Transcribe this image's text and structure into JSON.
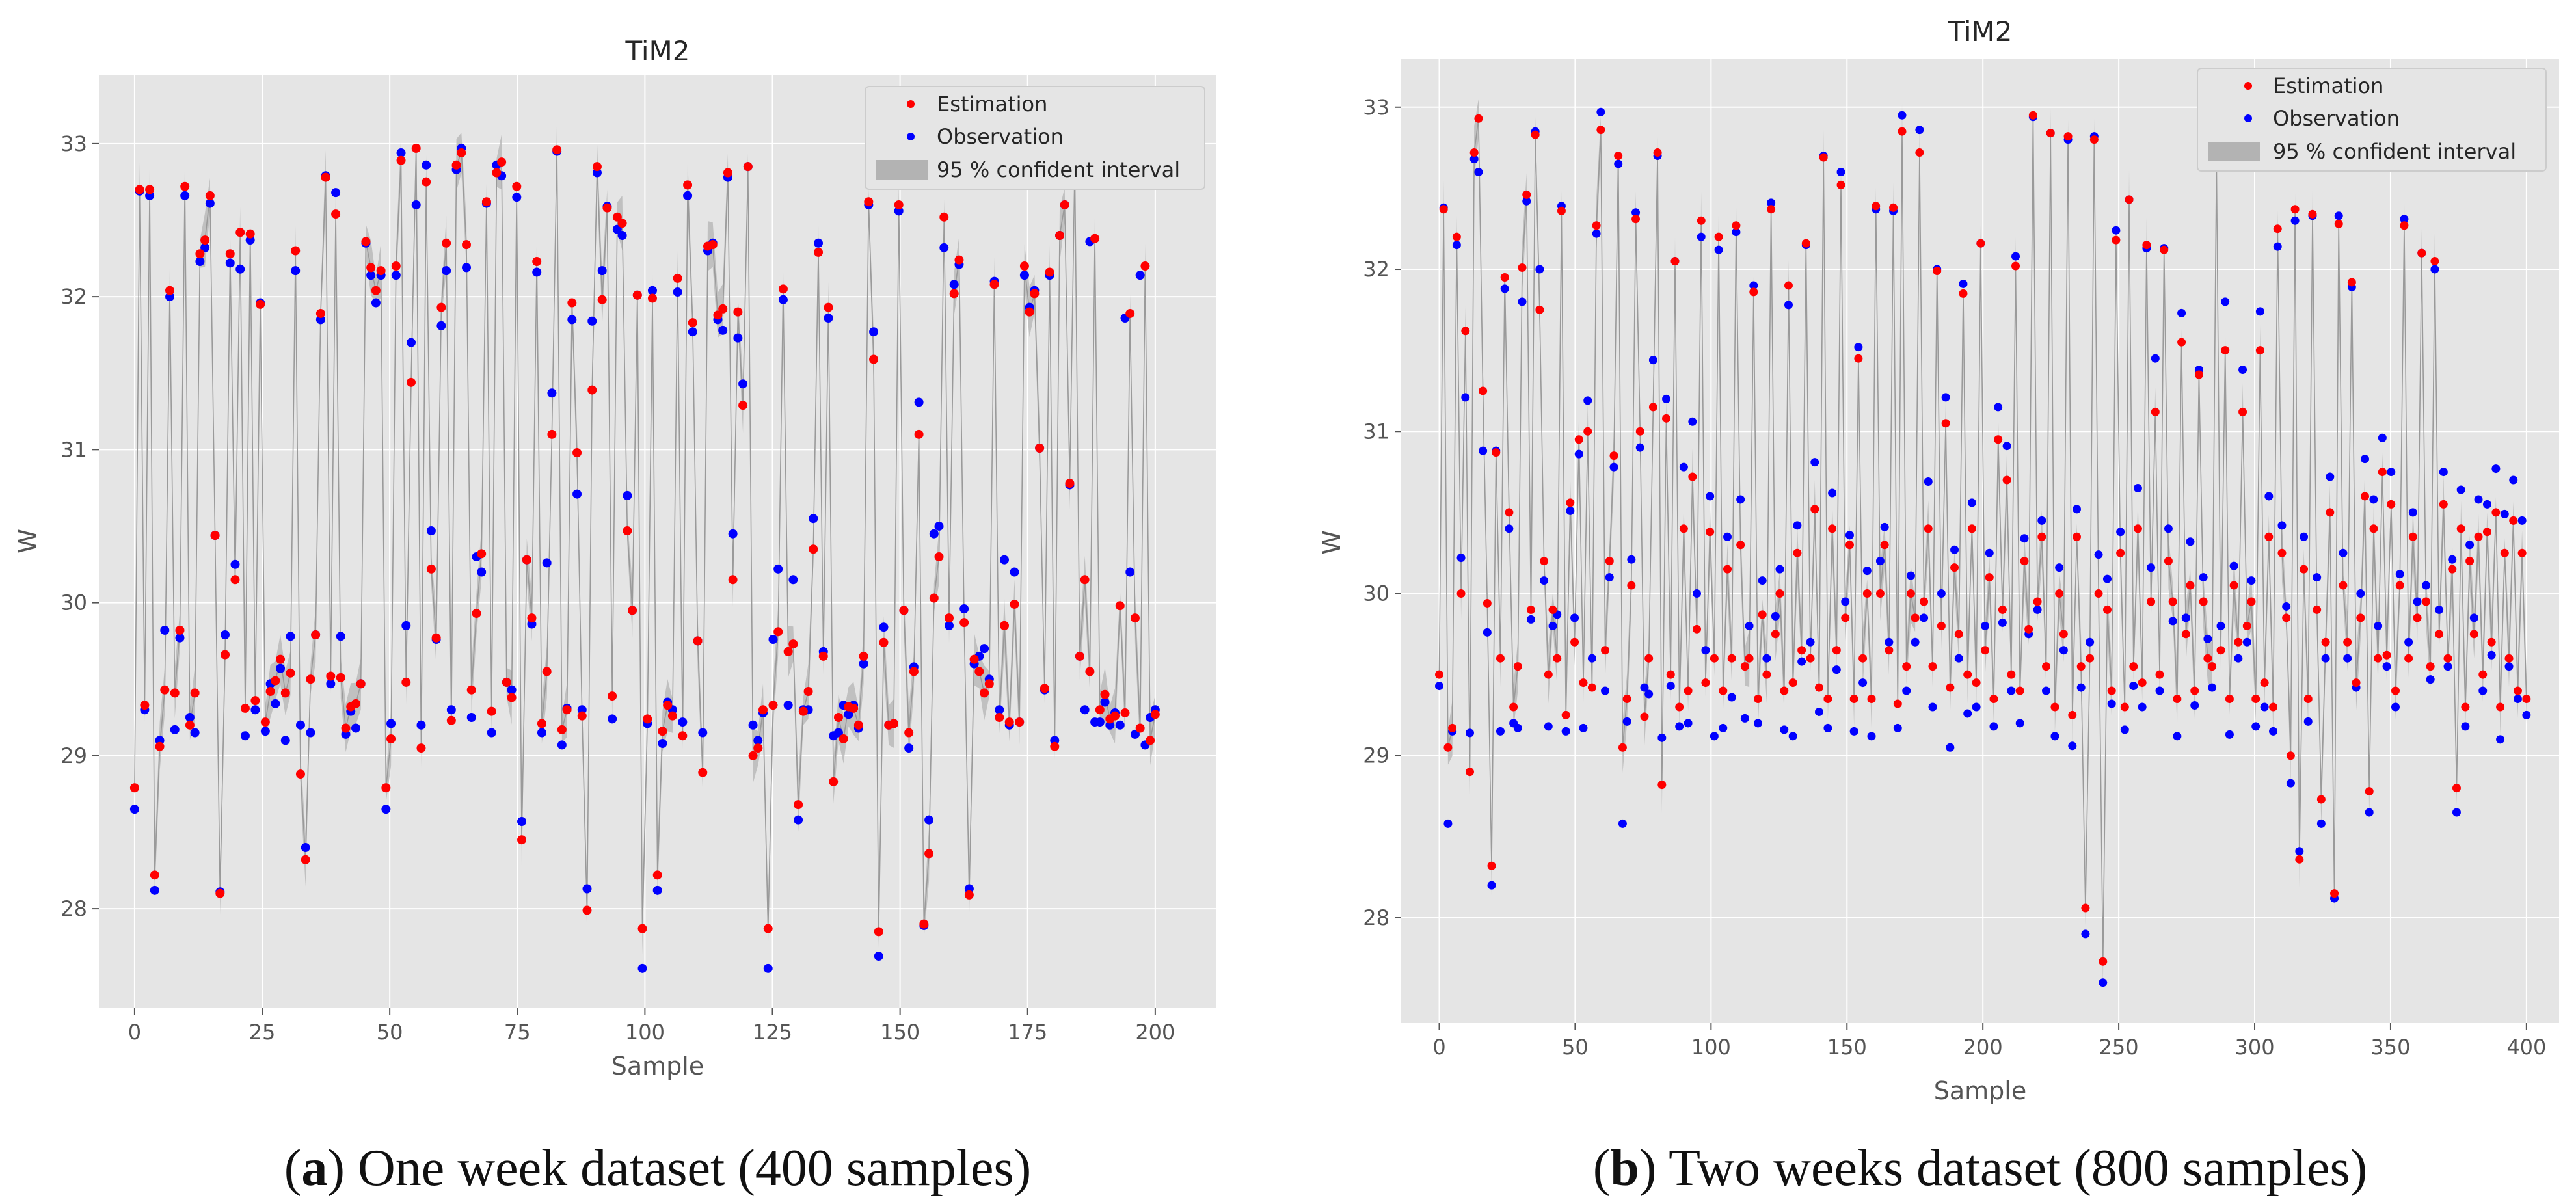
{
  "colors": {
    "estimation": "#ff0000",
    "observation": "#0000ff",
    "interval": "#b3b3b3",
    "line": "#9a9a9a",
    "plot_background": "#e5e5e5",
    "grid": "#ffffff"
  },
  "chart_data": [
    {
      "type": "scatter",
      "title": "TiM2",
      "xlabel": "Sample",
      "ylabel": "W",
      "xlim": [
        -7,
        212
      ],
      "ylim": [
        27.35,
        33.45
      ],
      "xticks": [
        0,
        25,
        50,
        75,
        100,
        125,
        150,
        175,
        200
      ],
      "xtick_labels": [
        "0",
        "25",
        "50",
        "75",
        "100",
        "125",
        "150",
        "175",
        "200"
      ],
      "yticks": [
        28,
        29,
        30,
        31,
        32,
        33
      ],
      "ytick_labels": [
        "28",
        "29",
        "30",
        "31",
        "32",
        "33"
      ],
      "grid": true,
      "legend_position": "top-right",
      "legend": [
        "Estimation",
        "Observation",
        "95 % confident interval"
      ],
      "x_start": 0,
      "series": [
        {
          "name": "Observation",
          "values": [
            28.65,
            32.69,
            29.3,
            32.66,
            28.12,
            29.1,
            29.82,
            32.0,
            29.17,
            29.77,
            32.66,
            29.25,
            29.15,
            32.23,
            32.32,
            32.61,
            30.44,
            28.11,
            29.79,
            32.22,
            30.25,
            32.18,
            29.13,
            32.37,
            29.3,
            31.96,
            29.16,
            29.47,
            29.34,
            29.57,
            29.1,
            29.78,
            32.17,
            29.2,
            28.4,
            29.15,
            29.79,
            31.85,
            32.79,
            29.47,
            32.68,
            29.78,
            29.14,
            29.29,
            29.18,
            29.47,
            32.35,
            32.14,
            31.96,
            32.14,
            28.65,
            29.21,
            32.14,
            32.94,
            29.85,
            31.7,
            32.6,
            29.2,
            32.86,
            30.47,
            29.76,
            31.81,
            32.17,
            29.3,
            32.83,
            32.97,
            32.19,
            29.25,
            30.3,
            30.2,
            32.61,
            29.15,
            32.86,
            32.79,
            29.48,
            29.43,
            32.65,
            28.57,
            30.28,
            29.86,
            32.16,
            29.15,
            30.26,
            31.37,
            32.95,
            29.07,
            29.31,
            31.85,
            30.71,
            29.3,
            28.13,
            31.84,
            32.81,
            32.17,
            32.59,
            29.24,
            32.44,
            32.4,
            30.7,
            29.95,
            32.01,
            27.61,
            29.21,
            32.04,
            28.12,
            29.08,
            29.35,
            29.3,
            32.03,
            29.22,
            32.66,
            31.77,
            29.75,
            29.15,
            32.3,
            32.35,
            31.85,
            31.78,
            32.78,
            30.45,
            31.73,
            31.43,
            32.85,
            29.2,
            29.1,
            29.28,
            27.61,
            29.76,
            30.22,
            31.98,
            29.33,
            30.15,
            28.58,
            29.3,
            29.3,
            30.55,
            32.35,
            29.68,
            31.86,
            29.13,
            29.15,
            29.33,
            29.27,
            29.33,
            29.18,
            29.6,
            32.6,
            31.77,
            27.69,
            29.84,
            29.2,
            29.21,
            32.56,
            29.95,
            29.05,
            29.58,
            31.31,
            27.89,
            28.58,
            30.45,
            30.5,
            32.32,
            29.85,
            32.08,
            32.21,
            29.96,
            28.13,
            29.6,
            29.65,
            29.7,
            29.5,
            32.1,
            29.3,
            30.28,
            29.2,
            30.2,
            29.22,
            32.14,
            31.93,
            32.04,
            31.01,
            29.43,
            32.14,
            29.1,
            32.4,
            32.6,
            30.77,
            32.88,
            29.65,
            29.3,
            32.36,
            29.22,
            29.22,
            29.35,
            29.2,
            29.28,
            29.2,
            31.86,
            30.2,
            29.14,
            32.14,
            29.07,
            29.25,
            29.3
          ]
        },
        {
          "name": "Estimation",
          "values": [
            28.79,
            32.7,
            29.33,
            32.7,
            28.22,
            29.06,
            29.43,
            32.04,
            29.41,
            29.82,
            32.72,
            29.2,
            29.41,
            32.28,
            32.37,
            32.66,
            30.44,
            28.1,
            29.66,
            32.28,
            30.15,
            32.42,
            29.31,
            32.41,
            29.36,
            31.95,
            29.22,
            29.42,
            29.49,
            29.63,
            29.41,
            29.54,
            32.3,
            28.88,
            28.32,
            29.5,
            29.79,
            31.89,
            32.78,
            29.52,
            32.54,
            29.51,
            29.18,
            29.32,
            29.34,
            29.47,
            32.36,
            32.19,
            32.04,
            32.17,
            28.79,
            29.11,
            32.2,
            32.89,
            29.48,
            31.44,
            32.97,
            29.05,
            32.75,
            30.22,
            29.77,
            31.93,
            32.35,
            29.23,
            32.86,
            32.94,
            32.34,
            29.43,
            29.93,
            30.32,
            32.62,
            29.29,
            32.81,
            32.88,
            29.48,
            29.38,
            32.72,
            28.45,
            30.28,
            29.9,
            32.23,
            29.21,
            29.55,
            31.1,
            32.96,
            29.17,
            29.3,
            31.96,
            30.98,
            29.26,
            27.99,
            31.39,
            32.85,
            31.98,
            32.58,
            29.39,
            32.52,
            32.48,
            30.47,
            29.95,
            32.01,
            27.87,
            29.24,
            31.99,
            28.22,
            29.16,
            29.33,
            29.26,
            32.12,
            29.13,
            32.73,
            31.83,
            29.75,
            28.89,
            32.33,
            32.34,
            31.88,
            31.92,
            32.81,
            30.15,
            31.9,
            31.29,
            32.85,
            29.0,
            29.05,
            29.3,
            27.87,
            29.33,
            29.81,
            32.05,
            29.68,
            29.73,
            28.68,
            29.29,
            29.42,
            30.35,
            32.29,
            29.65,
            31.93,
            28.83,
            29.25,
            29.11,
            29.32,
            29.31,
            29.2,
            29.65,
            32.62,
            31.59,
            27.85,
            29.74,
            29.2,
            29.21,
            32.6,
            29.95,
            29.15,
            29.55,
            31.1,
            27.9,
            28.36,
            30.03,
            30.3,
            32.52,
            29.9,
            32.02,
            32.24,
            29.87,
            28.09,
            29.63,
            29.55,
            29.41,
            29.47,
            32.08,
            29.25,
            29.85,
            29.22,
            29.99,
            29.22,
            32.2,
            31.9,
            32.02,
            31.01,
            29.44,
            32.16,
            29.06,
            32.4,
            32.6,
            30.78,
            32.86,
            29.65,
            30.15,
            29.55,
            32.38,
            29.3,
            29.4,
            29.24,
            29.26,
            29.98,
            29.28,
            31.89,
            29.9,
            29.18,
            32.2,
            29.1,
            29.27
          ]
        }
      ]
    },
    {
      "type": "scatter",
      "title": "TiM2",
      "xlabel": "Sample",
      "ylabel": "W",
      "xlim": [
        -14,
        412
      ],
      "ylim": [
        27.35,
        33.3
      ],
      "xticks": [
        0,
        50,
        100,
        150,
        200,
        250,
        300,
        350,
        400
      ],
      "xtick_labels": [
        "0",
        "50",
        "100",
        "150",
        "200",
        "250",
        "300",
        "350",
        "400"
      ],
      "yticks": [
        28,
        29,
        30,
        31,
        32,
        33
      ],
      "ytick_labels": [
        "28",
        "29",
        "30",
        "31",
        "32",
        "33"
      ],
      "grid": true,
      "legend_position": "top-right",
      "legend": [
        "Estimation",
        "Observation",
        "95 % confident interval"
      ],
      "x_start": 0,
      "series": [
        {
          "name": "Observation",
          "values": [
            29.43,
            32.38,
            28.58,
            29.15,
            32.15,
            30.22,
            31.21,
            29.14,
            32.68,
            32.6,
            30.88,
            29.76,
            28.2,
            30.88,
            29.15,
            31.88,
            30.4,
            29.2,
            29.17,
            31.8,
            32.42,
            29.84,
            32.85,
            32.0,
            30.08,
            29.18,
            29.8,
            29.87,
            32.39,
            29.15,
            30.51,
            29.85,
            30.86,
            29.17,
            31.19,
            29.6,
            32.22,
            32.97,
            29.4,
            30.1,
            30.78,
            32.65,
            28.58,
            29.21,
            30.21,
            32.35,
            30.9,
            29.42,
            29.38,
            31.44,
            32.7,
            29.11,
            31.2,
            29.43,
            32.05,
            29.18,
            30.78,
            29.2,
            31.06,
            30.0,
            32.2,
            29.65,
            30.6,
            29.12,
            32.12,
            29.17,
            30.35,
            29.36,
            32.23,
            30.58,
            29.23,
            29.8,
            31.9,
            29.2,
            30.08,
            29.6,
            32.41,
            29.86,
            30.15,
            29.16,
            31.78,
            29.12,
            30.42,
            29.58,
            32.15,
            29.7,
            30.81,
            29.27,
            32.7,
            29.17,
            30.62,
            29.53,
            32.6,
            29.95,
            30.36,
            29.15,
            31.52,
            29.45,
            30.14,
            29.12,
            32.37,
            30.2,
            30.41,
            29.7,
            32.36,
            29.17,
            32.95,
            29.4,
            30.11,
            29.7,
            32.86,
            29.85,
            30.69,
            29.3,
            32.0,
            30.0,
            31.21,
            29.05,
            30.27,
            29.6,
            31.91,
            29.26,
            30.56,
            29.3,
            32.16,
            29.8,
            30.25,
            29.18,
            31.15,
            29.82,
            30.91,
            29.4,
            32.08,
            29.2,
            30.34,
            29.75,
            32.94,
            29.9,
            30.45,
            29.4,
            32.84,
            29.12,
            30.16,
            29.65,
            32.8,
            29.06,
            30.52,
            29.42,
            27.9,
            29.7,
            32.82,
            30.24,
            27.6,
            30.09,
            29.32,
            32.24,
            30.38,
            29.16,
            32.43,
            29.43,
            30.65,
            29.3,
            32.13,
            30.16,
            31.45,
            29.4,
            32.13,
            30.4,
            29.83,
            29.12,
            31.73,
            29.85,
            30.32,
            29.31,
            31.38,
            30.1,
            29.72,
            29.42,
            32.93,
            29.8,
            31.8,
            29.13,
            30.17,
            29.6,
            31.38,
            29.7,
            30.08,
            29.18,
            31.74,
            29.3,
            30.6,
            29.15,
            32.14,
            30.42,
            29.92,
            28.83,
            32.3,
            28.41,
            30.35,
            29.21,
            32.33,
            30.1,
            28.58,
            29.6,
            30.72,
            28.12,
            32.33,
            30.25,
            29.6,
            31.89,
            29.42,
            30.0,
            30.83,
            28.65,
            30.58,
            29.8,
            30.96,
            29.55,
            30.75,
            29.3,
            30.12,
            32.31,
            29.7,
            30.5,
            29.95,
            32.1,
            30.05,
            29.47,
            32.0,
            29.9,
            30.75,
            29.55,
            30.21,
            28.65,
            30.64,
            29.18,
            30.3,
            29.85,
            30.58,
            29.4,
            30.55,
            29.62,
            30.77,
            29.1,
            30.49,
            29.55,
            30.7,
            29.35,
            30.45,
            29.25
          ]
        },
        {
          "name": "Estimation",
          "values": [
            29.5,
            32.37,
            29.05,
            29.17,
            32.2,
            30.0,
            31.62,
            28.9,
            32.72,
            32.93,
            31.25,
            29.94,
            28.32,
            30.87,
            29.6,
            31.95,
            30.5,
            29.3,
            29.55,
            32.01,
            32.46,
            29.9,
            32.83,
            31.75,
            30.2,
            29.5,
            29.9,
            29.6,
            32.36,
            29.25,
            30.56,
            29.7,
            30.95,
            29.45,
            31.0,
            29.42,
            32.27,
            32.86,
            29.65,
            30.2,
            30.85,
            32.7,
            29.05,
            29.35,
            30.05,
            32.31,
            31.0,
            29.24,
            29.6,
            31.15,
            32.72,
            28.82,
            31.08,
            29.5,
            32.05,
            29.3,
            30.4,
            29.4,
            30.72,
            29.78,
            32.3,
            29.45,
            30.38,
            29.6,
            32.2,
            29.4,
            30.15,
            29.6,
            32.27,
            30.3,
            29.55,
            29.6,
            31.86,
            29.35,
            29.87,
            29.5,
            32.37,
            29.75,
            30.0,
            29.4,
            31.9,
            29.45,
            30.25,
            29.65,
            32.16,
            29.6,
            30.52,
            29.42,
            32.69,
            29.35,
            30.4,
            29.65,
            32.52,
            29.85,
            30.3,
            29.35,
            31.45,
            29.6,
            30.0,
            29.35,
            32.39,
            30.0,
            30.3,
            29.65,
            32.38,
            29.32,
            32.85,
            29.55,
            30.0,
            29.85,
            32.72,
            29.95,
            30.4,
            29.55,
            31.99,
            29.8,
            31.05,
            29.42,
            30.16,
            29.75,
            31.85,
            29.5,
            30.4,
            29.45,
            32.16,
            29.65,
            30.1,
            29.35,
            30.95,
            29.9,
            30.7,
            29.5,
            32.02,
            29.4,
            30.2,
            29.78,
            32.95,
            29.95,
            30.35,
            29.55,
            32.84,
            29.3,
            30.0,
            29.75,
            32.82,
            29.25,
            30.35,
            29.55,
            28.06,
            29.6,
            32.8,
            30.0,
            27.73,
            29.9,
            29.4,
            32.18,
            30.25,
            29.3,
            32.43,
            29.55,
            30.4,
            29.45,
            32.15,
            29.95,
            31.12,
            29.5,
            32.12,
            30.2,
            29.95,
            29.35,
            31.55,
            29.75,
            30.05,
            29.4,
            31.35,
            29.95,
            29.6,
            29.55,
            32.67,
            29.65,
            31.5,
            29.35,
            30.05,
            29.7,
            31.12,
            29.8,
            29.95,
            29.35,
            31.5,
            29.45,
            30.35,
            29.3,
            32.25,
            30.25,
            29.85,
            29.0,
            32.37,
            28.36,
            30.15,
            29.35,
            32.34,
            29.9,
            28.73,
            29.7,
            30.5,
            28.15,
            32.28,
            30.05,
            29.7,
            31.92,
            29.45,
            29.85,
            30.6,
            28.78,
            30.4,
            29.6,
            30.75,
            29.62,
            30.55,
            29.4,
            30.05,
            32.27,
            29.6,
            30.35,
            29.85,
            32.1,
            29.95,
            29.55,
            32.05,
            29.75,
            30.55,
            29.6,
            30.15,
            28.8,
            30.4,
            29.3,
            30.2,
            29.75,
            30.35,
            29.5,
            30.38,
            29.7,
            30.5,
            29.3,
            30.25,
            29.6,
            30.45,
            29.4,
            30.25,
            29.35
          ]
        }
      ]
    }
  ],
  "captions": [
    {
      "letter": "a",
      "open": "(",
      "close": ")",
      "text": " One week dataset (400 samples)"
    },
    {
      "letter": "b",
      "open": "(",
      "close": ")",
      "text": " Two weeks dataset (800 samples)"
    }
  ]
}
